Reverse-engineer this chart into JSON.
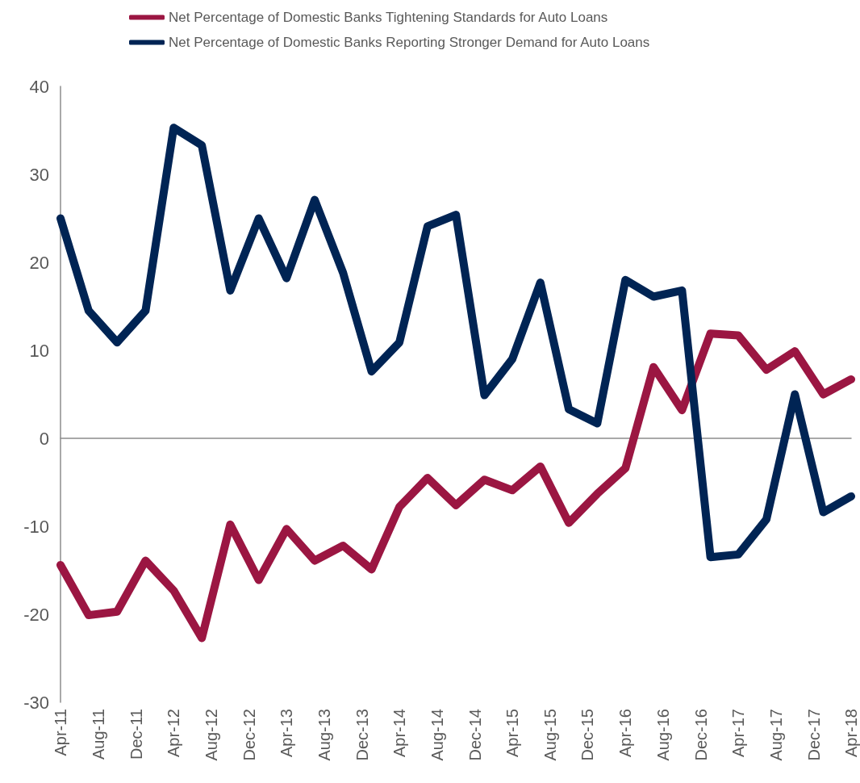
{
  "chart_data": {
    "type": "line",
    "x": [
      "2011-04",
      "2011-07",
      "2011-10",
      "2012-01",
      "2012-04",
      "2012-07",
      "2012-10",
      "2013-01",
      "2013-04",
      "2013-07",
      "2013-10",
      "2014-01",
      "2014-04",
      "2014-07",
      "2014-10",
      "2015-01",
      "2015-04",
      "2015-07",
      "2015-10",
      "2016-01",
      "2016-04",
      "2016-07",
      "2016-10",
      "2017-01",
      "2017-04",
      "2017-07",
      "2017-10",
      "2018-01",
      "2018-04"
    ],
    "series": [
      {
        "name": "Net Percentage of Domestic Banks Tightening Standards for Auto Loans",
        "color": "#9b1642",
        "values": [
          -14.4,
          -20.1,
          -19.7,
          -13.9,
          -17.3,
          -22.7,
          -9.8,
          -16.1,
          -10.3,
          -13.9,
          -12.2,
          -14.9,
          -7.8,
          -4.5,
          -7.6,
          -4.7,
          -5.9,
          -3.2,
          -9.6,
          -6.3,
          -3.4,
          8.1,
          3.2,
          11.9,
          11.7,
          7.8,
          9.9,
          5.0,
          6.7
        ]
      },
      {
        "name": "Net Percentage of Domestic Banks Reporting Stronger Demand for Auto Loans",
        "color": "#002454",
        "values": [
          25.0,
          14.5,
          10.9,
          14.5,
          35.3,
          33.3,
          16.8,
          25.0,
          18.2,
          27.1,
          18.8,
          7.6,
          10.9,
          24.1,
          25.4,
          4.9,
          9.0,
          17.7,
          3.3,
          1.7,
          18.0,
          16.1,
          16.8,
          -13.5,
          -13.2,
          -9.2,
          5.0,
          -8.4,
          -6.6
        ]
      }
    ],
    "xlim": [
      "2011-04",
      "2018-04"
    ],
    "xticks": [
      {
        "value": "2011-04",
        "label": "Apr-11"
      },
      {
        "value": "2011-08",
        "label": "Aug-11"
      },
      {
        "value": "2011-12",
        "label": "Dec-11"
      },
      {
        "value": "2012-04",
        "label": "Apr-12"
      },
      {
        "value": "2012-08",
        "label": "Aug-12"
      },
      {
        "value": "2012-12",
        "label": "Dec-12"
      },
      {
        "value": "2013-04",
        "label": "Apr-13"
      },
      {
        "value": "2013-08",
        "label": "Aug-13"
      },
      {
        "value": "2013-12",
        "label": "Dec-13"
      },
      {
        "value": "2014-04",
        "label": "Apr-14"
      },
      {
        "value": "2014-08",
        "label": "Aug-14"
      },
      {
        "value": "2014-12",
        "label": "Dec-14"
      },
      {
        "value": "2015-04",
        "label": "Apr-15"
      },
      {
        "value": "2015-08",
        "label": "Aug-15"
      },
      {
        "value": "2015-12",
        "label": "Dec-15"
      },
      {
        "value": "2016-04",
        "label": "Apr-16"
      },
      {
        "value": "2016-08",
        "label": "Aug-16"
      },
      {
        "value": "2016-12",
        "label": "Dec-16"
      },
      {
        "value": "2017-04",
        "label": "Apr-17"
      },
      {
        "value": "2017-08",
        "label": "Aug-17"
      },
      {
        "value": "2017-12",
        "label": "Dec-17"
      },
      {
        "value": "2018-04",
        "label": "Apr-18"
      }
    ],
    "ylim": [
      -30,
      40
    ],
    "yticks": [
      -30,
      -20,
      -10,
      0,
      10,
      20,
      30,
      40
    ],
    "legend": "top",
    "line_style": "solid"
  }
}
